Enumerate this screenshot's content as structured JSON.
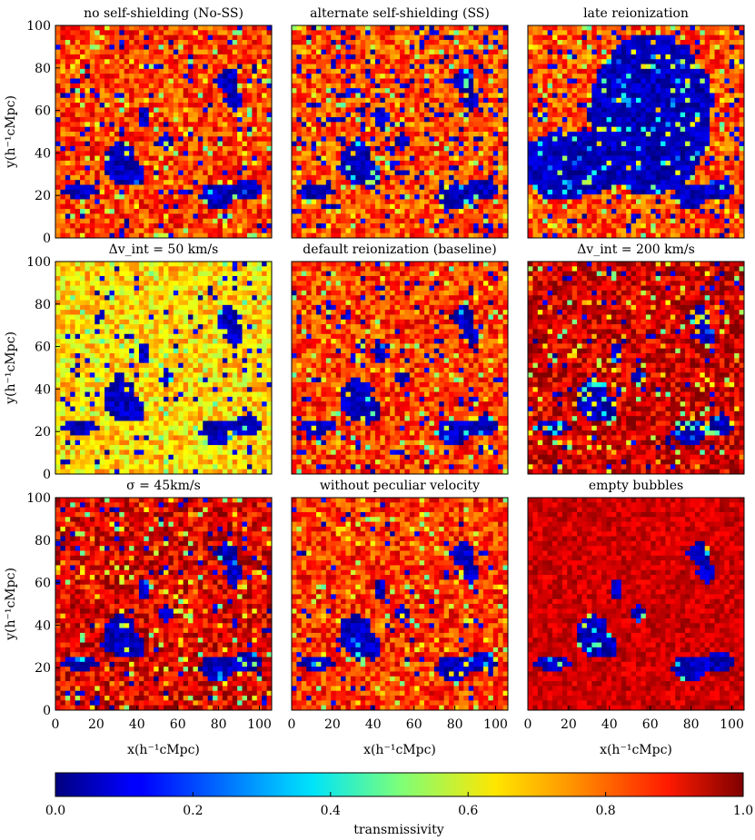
{
  "chart_data": {
    "type": "heatmap",
    "colormap": "jet",
    "colorbar": {
      "label": "transmissivity",
      "range": [
        0.0,
        1.0
      ],
      "ticks": [
        "0.0",
        "0.2",
        "0.4",
        "0.6",
        "0.8",
        "1.0"
      ],
      "placement": "bottom"
    },
    "xlabel": "x(h⁻¹cMpc)",
    "ylabel": "y(h⁻¹cMpc)",
    "xlim": [
      0,
      106
    ],
    "ylim": [
      0,
      100
    ],
    "xticks": [
      "0",
      "20",
      "40",
      "60",
      "80",
      "100"
    ],
    "yticks": [
      "0",
      "20",
      "40",
      "60",
      "80",
      "100"
    ],
    "panels": [
      {
        "title": "no self-shielding (No-SS)",
        "mean_transmissivity": 0.82,
        "dark_fraction": 0.06,
        "bubble_fill": 0.02,
        "smooth": false
      },
      {
        "title": "alternate self-shielding (SS)",
        "mean_transmissivity": 0.8,
        "dark_fraction": 0.12,
        "bubble_fill": 0.02,
        "smooth": false
      },
      {
        "title": "late reionization",
        "mean_transmissivity": 0.8,
        "dark_fraction": 0.06,
        "bubble_fill": 0.06,
        "smooth": false,
        "late": true
      },
      {
        "title": "Δv_int = 50 km/s",
        "mean_transmissivity": 0.66,
        "dark_fraction": 0.05,
        "bubble_fill": 0.02,
        "smooth": false
      },
      {
        "title": "default reionization (baseline)",
        "mean_transmissivity": 0.82,
        "dark_fraction": 0.06,
        "bubble_fill": 0.02,
        "smooth": false
      },
      {
        "title": "Δv_int = 200 km/s",
        "mean_transmissivity": 0.92,
        "dark_fraction": 0.03,
        "bubble_fill": 0.3,
        "smooth": false
      },
      {
        "title": "σ = 45km/s",
        "mean_transmissivity": 0.9,
        "dark_fraction": 0.04,
        "bubble_fill": 0.03,
        "smooth": false
      },
      {
        "title": "without peculiar velocity",
        "mean_transmissivity": 0.83,
        "dark_fraction": 0.03,
        "bubble_fill": 0.03,
        "smooth": false
      },
      {
        "title": "empty bubbles",
        "mean_transmissivity": 0.98,
        "dark_fraction": 0.0,
        "bubble_fill": 0.05,
        "smooth": true
      }
    ]
  }
}
